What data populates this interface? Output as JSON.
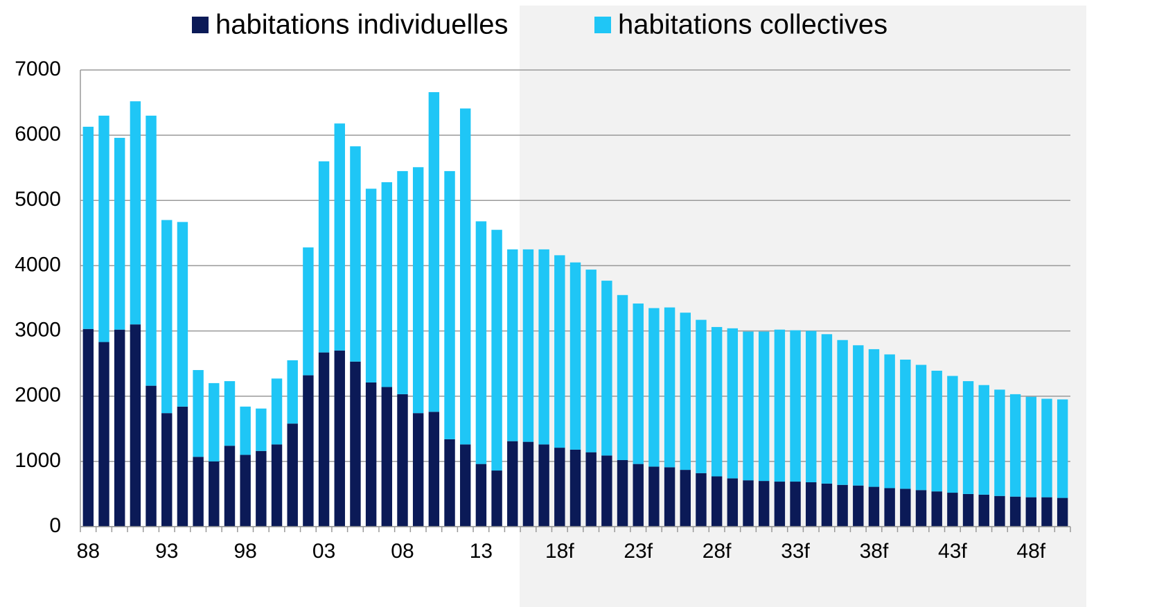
{
  "chart_data": {
    "type": "stacked-bar",
    "categories": [
      "88",
      null,
      null,
      null,
      null,
      "93",
      null,
      null,
      null,
      null,
      "98",
      null,
      null,
      null,
      null,
      "03",
      null,
      null,
      null,
      null,
      "08",
      null,
      null,
      null,
      null,
      "13",
      null,
      null,
      null,
      null,
      "18f",
      null,
      null,
      null,
      null,
      "23f",
      null,
      null,
      null,
      null,
      "28f",
      null,
      null,
      null,
      null,
      "33f",
      null,
      null,
      null,
      null,
      "38f",
      null,
      null,
      null,
      null,
      "43f",
      null,
      null,
      null,
      null,
      "48f",
      null,
      null
    ],
    "series": [
      {
        "name": "habitations individuelles",
        "color": "#0b1a57",
        "values": [
          3030,
          2830,
          3020,
          3100,
          2160,
          1740,
          1840,
          1070,
          1000,
          1240,
          1100,
          1160,
          1260,
          1580,
          2320,
          2670,
          2700,
          2530,
          2210,
          2140,
          2030,
          1740,
          1760,
          1340,
          1260,
          960,
          860,
          1310,
          1300,
          1260,
          1210,
          1180,
          1140,
          1090,
          1020,
          960,
          920,
          910,
          870,
          820,
          770,
          740,
          710,
          700,
          690,
          690,
          680,
          660,
          640,
          630,
          610,
          590,
          580,
          560,
          540,
          520,
          500,
          490,
          470,
          460,
          450,
          450,
          440
        ]
      },
      {
        "name": "habitations collectives",
        "color": "#1fc6f6",
        "values": [
          3100,
          3470,
          2940,
          3420,
          4140,
          2960,
          2830,
          1330,
          1200,
          990,
          740,
          650,
          1010,
          970,
          1960,
          2930,
          3480,
          3300,
          2970,
          3140,
          3420,
          3770,
          4900,
          4110,
          5150,
          3720,
          3690,
          2940,
          2950,
          2990,
          2950,
          2870,
          2800,
          2680,
          2530,
          2460,
          2430,
          2450,
          2410,
          2350,
          2290,
          2300,
          2280,
          2290,
          2330,
          2320,
          2320,
          2290,
          2220,
          2150,
          2110,
          2050,
          1980,
          1920,
          1850,
          1790,
          1730,
          1680,
          1630,
          1570,
          1540,
          1510,
          1510
        ]
      }
    ],
    "ylim": [
      0,
      7000
    ],
    "yticks": [
      0,
      1000,
      2000,
      3000,
      4000,
      5000,
      6000,
      7000
    ],
    "grid": true,
    "legend": "top"
  }
}
